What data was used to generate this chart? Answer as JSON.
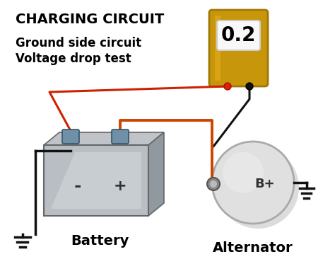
{
  "title": "CHARGING CIRCUIT",
  "subtitle_line1": "Ground side circuit",
  "subtitle_line2": "Voltage drop test",
  "meter_value": "0.2",
  "battery_label": "Battery",
  "alternator_label": "Alternator",
  "b_plus_label": "B+",
  "minus_label": "-",
  "plus_label": "+",
  "bg_color": "#ffffff",
  "title_color": "#000000",
  "subtitle_color": "#000000",
  "battery_face_color": "#b8bec4",
  "battery_face_light": "#d4d8dc",
  "battery_face_dark": "#8a9098",
  "battery_side_color": "#9098a0",
  "battery_top_color": "#c0c4c8",
  "battery_terminal_color": "#7090a8",
  "meter_body_color": "#c8960a",
  "meter_body_shade": "#a07808",
  "meter_screen_color": "#f8f8f8",
  "meter_text_color": "#000000",
  "wire_red": "#cc2200",
  "wire_black": "#111111",
  "wire_orange": "#cc4400",
  "alt_body_color": "#e0e0e0",
  "alt_shadow_color": "#aaaaaa",
  "alt_highlight": "#f5f5f5",
  "ground_color": "#111111",
  "label_color": "#000000",
  "probe_red_color": "#dd2200",
  "probe_black_color": "#111111",
  "title_fontsize": 14,
  "subtitle_fontsize": 12,
  "label_fontsize": 14
}
